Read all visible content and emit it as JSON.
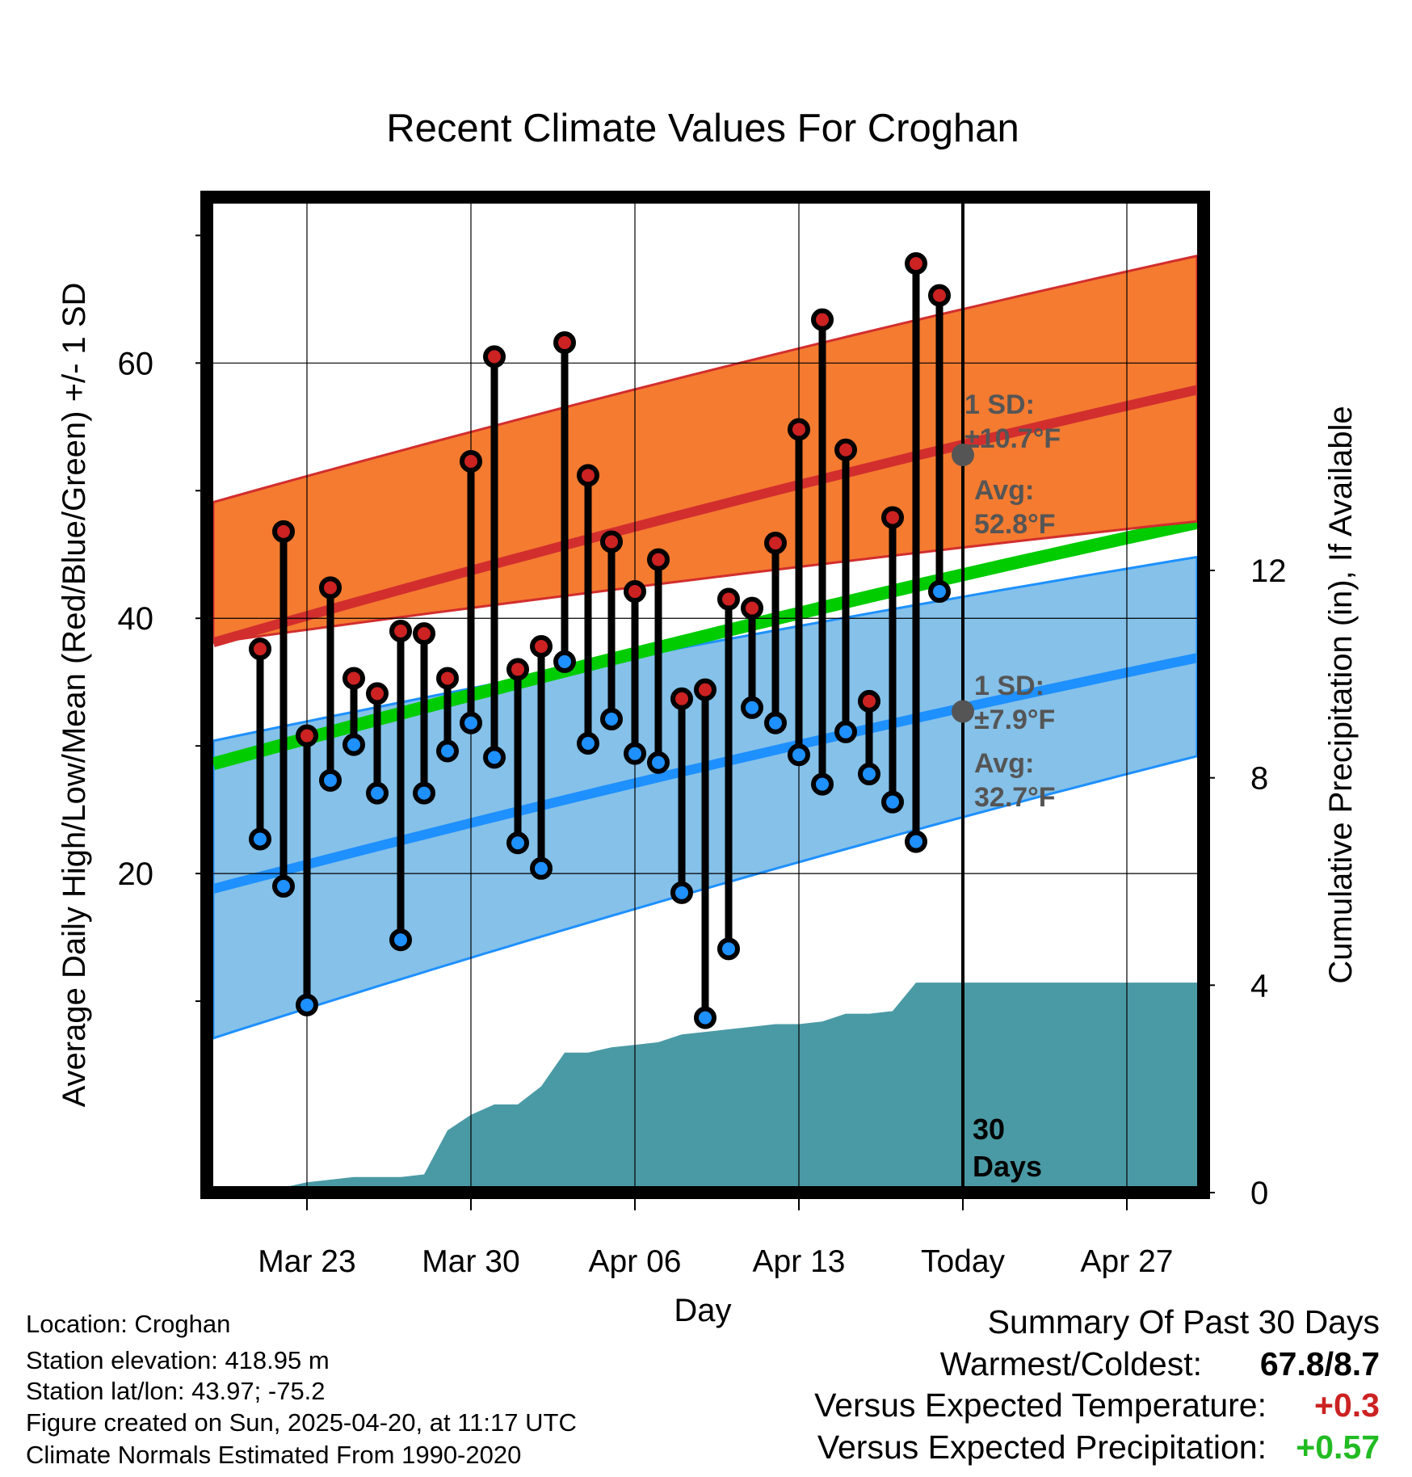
{
  "chart_data": {
    "type": "line",
    "title": "Recent Climate Values For Croghan",
    "xlabel": "Day",
    "ylabel": "Average Daily High/Low/Mean (Red/Blue/Green) +/- 1 SD",
    "y2label": "Cumulative Precipitation (in), If Available",
    "ylim": [
      -5,
      73
    ],
    "y2lim": [
      0,
      19.2
    ],
    "x_tick_labels": [
      "Mar 23",
      "Mar 30",
      "Apr 06",
      "Apr 13",
      "Today",
      "Apr 27"
    ],
    "y_tick_labels": [
      "20",
      "40",
      "60"
    ],
    "y2_tick_labels": [
      "0",
      "4",
      "8",
      "12"
    ],
    "grid": true,
    "xlim_days": [
      "2025-03-19",
      "2025-04-30"
    ],
    "dates": [
      "2025-03-21",
      "2025-03-22",
      "2025-03-23",
      "2025-03-24",
      "2025-03-25",
      "2025-03-26",
      "2025-03-27",
      "2025-03-28",
      "2025-03-29",
      "2025-03-30",
      "2025-03-31",
      "2025-04-01",
      "2025-04-02",
      "2025-04-03",
      "2025-04-04",
      "2025-04-05",
      "2025-04-06",
      "2025-04-07",
      "2025-04-08",
      "2025-04-09",
      "2025-04-10",
      "2025-04-11",
      "2025-04-12",
      "2025-04-13",
      "2025-04-14",
      "2025-04-15",
      "2025-04-16",
      "2025-04-17",
      "2025-04-18",
      "2025-04-19"
    ],
    "highs": [
      37.6,
      46.8,
      30.8,
      42.4,
      35.3,
      34.1,
      39.0,
      38.8,
      35.3,
      52.3,
      60.5,
      36.0,
      37.8,
      61.6,
      51.2,
      46.0,
      42.1,
      44.6,
      33.7,
      34.4,
      41.5,
      40.8,
      45.9,
      54.8,
      63.4,
      53.2,
      33.5,
      47.9,
      67.8,
      65.3
    ],
    "lows": [
      22.7,
      19.0,
      9.7,
      27.3,
      30.1,
      26.3,
      14.8,
      26.3,
      29.6,
      31.8,
      29.1,
      22.4,
      20.4,
      36.6,
      30.2,
      32.1,
      29.4,
      28.7,
      18.5,
      8.7,
      14.1,
      33.0,
      31.8,
      29.3,
      27.0,
      31.1,
      27.8,
      25.6,
      22.5,
      42.1
    ],
    "precip_cumulative": [
      0.0,
      0.1,
      0.2,
      0.25,
      0.3,
      0.3,
      0.3,
      0.35,
      1.2,
      1.5,
      1.7,
      1.7,
      2.05,
      2.7,
      2.7,
      2.8,
      2.85,
      2.9,
      3.05,
      3.1,
      3.15,
      3.2,
      3.25,
      3.25,
      3.3,
      3.45,
      3.45,
      3.5,
      4.05,
      4.05
    ],
    "precip_after_today": 4.05,
    "normals": {
      "high_mean": [
        38.1,
        57.9
      ],
      "high_sd_band": [
        [
          49.1,
          38.1
        ],
        [
          68.4,
          47.6
        ]
      ],
      "low_mean": [
        18.8,
        36.9
      ],
      "low_sd_band": [
        [
          30.4,
          7.1
        ],
        [
          44.8,
          29.2
        ]
      ],
      "mean_line": [
        28.6,
        47.5
      ]
    },
    "annotations": {
      "high_sd": "1 SD:",
      "high_sd_val": "±10.7°F",
      "high_avg": "Avg:",
      "high_avg_val": "52.8°F",
      "low_sd": "1 SD:",
      "low_sd_val": "±7.9°F",
      "low_avg": "Avg:",
      "low_avg_val": "32.7°F",
      "window_line1": "30",
      "window_line2": "Days",
      "high_avg_marker": 52.8,
      "low_avg_marker": 32.7
    },
    "colors": {
      "high_band": "#f47b30",
      "high_line": "#d22e2e",
      "low_band": "#85c1e9",
      "low_line": "#1e90ff",
      "mean_line": "#00cc00",
      "precip": "#4a9aa5",
      "high_dot": "#cc2222",
      "low_dot": "#1e90ff",
      "annotation": "#555555"
    }
  },
  "metadata": {
    "location": "Location: Croghan",
    "elevation": "Station elevation: 418.95 m",
    "latlon": "Station lat/lon: 43.97; -75.2",
    "created": "Figure created on Sun, 2025-04-20, at 11:17 UTC",
    "normals": "Climate Normals Estimated From 1990-2020"
  },
  "summary": {
    "title": "Summary Of Past 30 Days",
    "warm_cold_label": "Warmest/Coldest:",
    "warm_cold_value": "67.8/8.7",
    "temp_label": "Versus Expected Temperature:",
    "temp_value": "+0.3",
    "temp_color": "#cc2222",
    "precip_label": "Versus Expected Precipitation:",
    "precip_value": "+0.57",
    "precip_color": "#22bb22"
  }
}
